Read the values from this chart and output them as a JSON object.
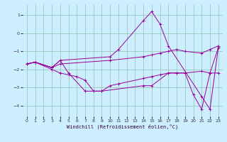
{
  "background_color": "#cceeff",
  "grid_color": "#99ccbb",
  "line_color": "#990099",
  "xlabel": "Windchill (Refroidissement éolien,°C)",
  "xlim": [
    -0.5,
    23.5
  ],
  "ylim": [
    -4.6,
    1.6
  ],
  "yticks": [
    -4,
    -3,
    -2,
    -1,
    0,
    1
  ],
  "xticks": [
    0,
    1,
    2,
    3,
    4,
    5,
    6,
    7,
    8,
    9,
    10,
    11,
    12,
    13,
    14,
    15,
    16,
    17,
    18,
    19,
    20,
    21,
    22,
    23
  ],
  "series": [
    {
      "x": [
        0,
        1,
        3,
        4,
        10,
        11,
        14,
        15,
        16,
        17,
        21,
        22,
        23
      ],
      "y": [
        -1.7,
        -1.6,
        -1.9,
        -1.5,
        -1.3,
        -0.9,
        0.7,
        1.2,
        0.5,
        -0.7,
        -3.5,
        -4.2,
        -0.8
      ]
    },
    {
      "x": [
        0,
        1,
        3,
        4,
        10,
        14,
        15,
        16,
        17,
        18,
        19,
        21,
        22,
        23
      ],
      "y": [
        -1.7,
        -1.6,
        -1.9,
        -1.7,
        -1.5,
        -1.3,
        -1.2,
        -1.1,
        -1.0,
        -0.9,
        -1.0,
        -1.1,
        -0.9,
        -0.7
      ]
    },
    {
      "x": [
        0,
        1,
        3,
        4,
        5,
        6,
        7,
        8,
        9,
        10,
        11,
        14,
        15,
        16,
        17,
        18,
        19,
        21,
        22,
        23
      ],
      "y": [
        -1.7,
        -1.6,
        -2.0,
        -2.2,
        -2.3,
        -2.4,
        -2.6,
        -3.2,
        -3.2,
        -2.9,
        -2.8,
        -2.5,
        -2.4,
        -2.3,
        -2.2,
        -2.2,
        -2.2,
        -2.1,
        -2.2,
        -2.2
      ]
    },
    {
      "x": [
        0,
        1,
        3,
        4,
        5,
        7,
        8,
        9,
        14,
        15,
        17,
        18,
        19,
        20,
        21,
        22,
        23
      ],
      "y": [
        -1.7,
        -1.6,
        -1.9,
        -1.5,
        -2.2,
        -3.2,
        -3.2,
        -3.2,
        -2.9,
        -2.9,
        -2.2,
        -2.2,
        -2.2,
        -3.4,
        -4.2,
        -2.2,
        -0.8
      ]
    }
  ]
}
